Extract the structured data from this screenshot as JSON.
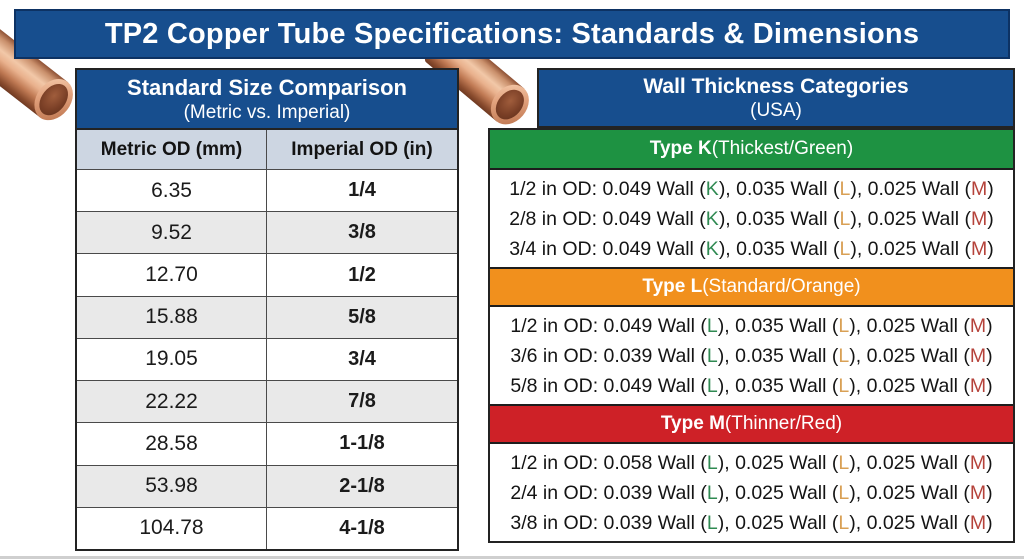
{
  "page": {
    "title": "TP2 Copper Tube Specifications: Standards & Dimensions"
  },
  "size_table": {
    "title": "Standard Size Comparison",
    "subtitle": "(Metric vs. Imperial)",
    "col1": "Metric OD (mm)",
    "col2": "Imperial OD (in)",
    "rows": [
      {
        "metric": "6.35",
        "imperial": "1/4"
      },
      {
        "metric": "9.52",
        "imperial": "3/8"
      },
      {
        "metric": "12.70",
        "imperial": "1/2"
      },
      {
        "metric": "15.88",
        "imperial": "5/8"
      },
      {
        "metric": "19.05",
        "imperial": "3/4"
      },
      {
        "metric": "22.22",
        "imperial": "7/8"
      },
      {
        "metric": "28.58",
        "imperial": "1-1/8"
      },
      {
        "metric": "53.98",
        "imperial": "2-1/8"
      },
      {
        "metric": "104.78",
        "imperial": "4-1/8"
      }
    ]
  },
  "wall_panel": {
    "title": "Wall Thickness Categories",
    "subtitle": "(USA)",
    "sections": [
      {
        "type": "Type K",
        "descriptor": " (Thickest/Green)",
        "bar_color": "#1e9242",
        "rows": [
          {
            "pre": "1/2 in OD: 0.049 Wall (",
            "l1": "K",
            "m1": "), 0.035 Wall (",
            "l2": "L",
            "m2": "), 0.025 Wall (",
            "l3": "M",
            "suf": ")"
          },
          {
            "pre": "2/8 in OD: 0.049 Wall (",
            "l1": "K",
            "m1": "), 0.035 Wall (",
            "l2": "L",
            "m2": "), 0.025 Wall (",
            "l3": "M",
            "suf": ")"
          },
          {
            "pre": "3/4 in OD: 0.049 Wall (",
            "l1": "K",
            "m1": "), 0.035 Wall (",
            "l2": "L",
            "m2": "), 0.025 Wall (",
            "l3": "M",
            "suf": ")"
          }
        ]
      },
      {
        "type": "Type L",
        "descriptor": " (Standard/Orange)",
        "bar_color": "#f1901d",
        "rows": [
          {
            "pre": "1/2 in OD: 0.049 Wall (",
            "l1": "L",
            "m1": "), 0.035 Wall (",
            "l2": "L",
            "m2": "), 0.025 Wall (",
            "l3": "M",
            "suf": ")"
          },
          {
            "pre": "3/6 in OD: 0.039 Wall (",
            "l1": "L",
            "m1": "), 0.035 Wall (",
            "l2": "L",
            "m2": "), 0.025 Wall (",
            "l3": "M",
            "suf": ")"
          },
          {
            "pre": "5/8 in OD: 0.049 Wall (",
            "l1": "L",
            "m1": "), 0.035 Wall (",
            "l2": "L",
            "m2": "), 0.025 Wall (",
            "l3": "M",
            "suf": ")"
          }
        ]
      },
      {
        "type": "Type M",
        "descriptor": " (Thinner/Red)",
        "bar_color": "#ce2127",
        "rows": [
          {
            "pre": "1/2 in OD: 0.058 Wall (",
            "l1": "L",
            "m1": "), 0.025 Wall (",
            "l2": "L",
            "m2": "), 0.025 Wall (",
            "l3": "M",
            "suf": ")"
          },
          {
            "pre": "2/4 in OD: 0.039 Wall (",
            "l1": "L",
            "m1": "), 0.025 Wall (",
            "l2": "L",
            "m2": "), 0.025 Wall (",
            "l3": "M",
            "suf": ")"
          },
          {
            "pre": "3/8 in OD: 0.039 Wall (",
            "l1": "L",
            "m1": "), 0.025 Wall (",
            "l2": "L",
            "m2": "), 0.025 Wall (",
            "l3": "M",
            "suf": ")"
          }
        ]
      }
    ]
  },
  "colors": {
    "banner_blue": "#174e8e",
    "type_k_green": "#1e9242",
    "type_l_orange": "#f1901d",
    "type_m_red": "#ce2127",
    "letter_green": "#2f8a52",
    "letter_orange": "#d9a055",
    "letter_red": "#b5423a",
    "row_stripe_gray": "#e9e9e9",
    "column_header_gray_blue": "#cdd6e2"
  }
}
